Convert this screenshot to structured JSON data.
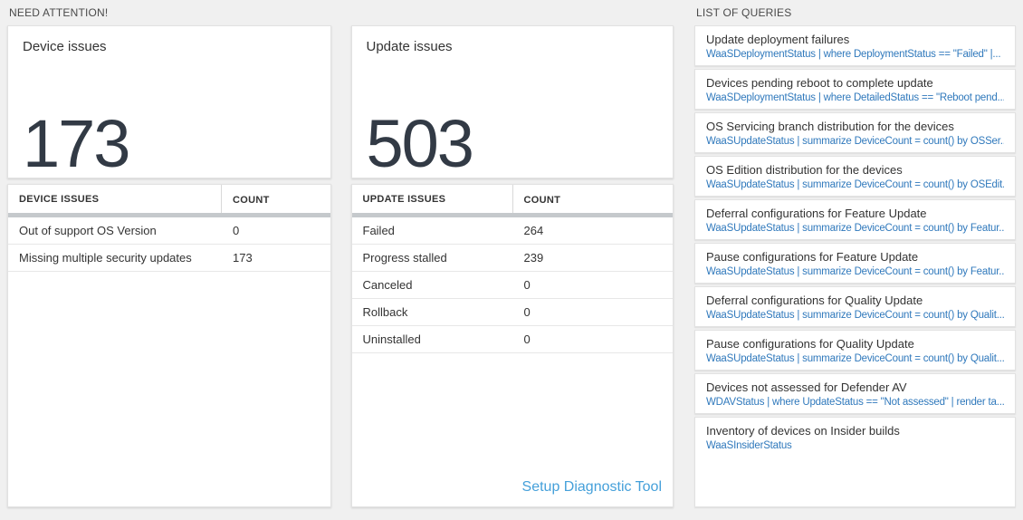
{
  "colors": {
    "accent_query_blue": "#3079bc",
    "setup_link_blue": "#45a0da",
    "big_number_color": "#323a45",
    "page_background": "#f0f0f0"
  },
  "need_attention": {
    "header": "NEED ATTENTION!",
    "cards": [
      {
        "title": "Device issues",
        "big_number": "173",
        "table": {
          "columns": [
            "DEVICE ISSUES",
            "COUNT"
          ],
          "rows": [
            [
              "Out of support OS Version",
              "0"
            ],
            [
              "Missing multiple security updates",
              "173"
            ]
          ]
        }
      },
      {
        "title": "Update issues",
        "big_number": "503",
        "table": {
          "columns": [
            "UPDATE ISSUES",
            "COUNT"
          ],
          "rows": [
            [
              "Failed",
              "264"
            ],
            [
              "Progress stalled",
              "239"
            ],
            [
              "Canceled",
              "0"
            ],
            [
              "Rollback",
              "0"
            ],
            [
              "Uninstalled",
              "0"
            ]
          ]
        },
        "footer_link": "Setup Diagnostic Tool"
      }
    ]
  },
  "queries": {
    "header": "LIST OF QUERIES",
    "items": [
      {
        "title": "Update deployment failures",
        "query": "WaaSDeploymentStatus | where DeploymentStatus == \"Failed\" |..."
      },
      {
        "title": "Devices pending reboot to complete update",
        "query": "WaaSDeploymentStatus | where DetailedStatus == \"Reboot pend..."
      },
      {
        "title": "OS Servicing branch distribution for the devices",
        "query": "WaaSUpdateStatus | summarize DeviceCount = count() by OSSer..."
      },
      {
        "title": "OS Edition distribution for the devices",
        "query": "WaaSUpdateStatus | summarize DeviceCount = count() by OSEdit..."
      },
      {
        "title": "Deferral configurations for Feature Update",
        "query": "WaaSUpdateStatus | summarize DeviceCount = count() by Featur..."
      },
      {
        "title": "Pause configurations for Feature Update",
        "query": "WaaSUpdateStatus | summarize DeviceCount = count() by Featur..."
      },
      {
        "title": "Deferral configurations for Quality Update",
        "query": "WaaSUpdateStatus | summarize DeviceCount = count() by Qualit..."
      },
      {
        "title": "Pause configurations for Quality Update",
        "query": "WaaSUpdateStatus | summarize DeviceCount = count() by Qualit..."
      },
      {
        "title": "Devices not assessed for Defender AV",
        "query": "WDAVStatus | where UpdateStatus == \"Not assessed\" | render ta..."
      },
      {
        "title": "Inventory of devices on Insider builds",
        "query": "WaaSInsiderStatus"
      }
    ]
  }
}
